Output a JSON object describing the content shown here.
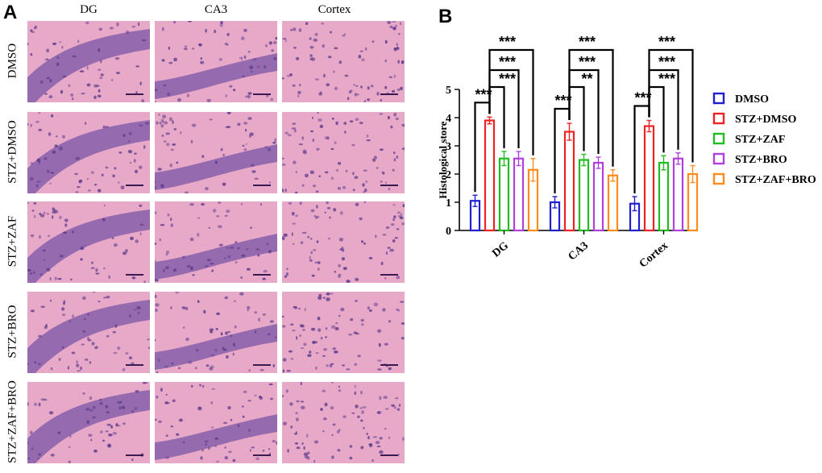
{
  "panel_a": {
    "letter": "A",
    "columns": [
      "DG",
      "CA3",
      "Cortex"
    ],
    "rows": [
      "DMSO",
      "STZ+DMSO",
      "STZ+ZAF",
      "STZ+BRO",
      "STZ+ZAF+BRO"
    ],
    "colors": {
      "tissue": "#e8a9c9",
      "nuclei": "#7a55a6",
      "dense": "#5b3a8a"
    }
  },
  "chart_data": {
    "type": "bar",
    "panel_letter": "B",
    "title": "",
    "xlabel": "",
    "ylabel": "Histological store",
    "categories": [
      "DG",
      "CA3",
      "Cortex"
    ],
    "ylim": [
      0,
      5
    ],
    "yticks": [
      "0",
      "1",
      "2",
      "3",
      "4",
      "5"
    ],
    "grid": false,
    "legend_position": "right",
    "series": [
      {
        "name": "DMSO",
        "color": "#1f1fcf",
        "values": [
          1.05,
          1.0,
          0.95
        ],
        "errors": [
          0.2,
          0.2,
          0.25
        ]
      },
      {
        "name": "STZ+DMSO",
        "color": "#ee2222",
        "values": [
          3.9,
          3.5,
          3.7
        ],
        "errors": [
          0.12,
          0.3,
          0.2
        ]
      },
      {
        "name": "STZ+ZAF",
        "color": "#22bb22",
        "values": [
          2.55,
          2.5,
          2.4
        ],
        "errors": [
          0.25,
          0.2,
          0.25
        ]
      },
      {
        "name": "STZ+BRO",
        "color": "#b040dd",
        "values": [
          2.55,
          2.4,
          2.55
        ],
        "errors": [
          0.25,
          0.2,
          0.2
        ]
      },
      {
        "name": "STZ+ZAF+BRO",
        "color": "#ff8c1a",
        "values": [
          2.15,
          1.95,
          2.0
        ],
        "errors": [
          0.4,
          0.2,
          0.3
        ]
      }
    ],
    "significance": [
      {
        "category": "DG",
        "labels": [
          "***",
          "***",
          "***",
          "***"
        ]
      },
      {
        "category": "CA3",
        "labels": [
          "***",
          "**",
          "***",
          "***"
        ]
      },
      {
        "category": "Cortex",
        "labels": [
          "***",
          "***",
          "***",
          "***"
        ]
      }
    ]
  }
}
